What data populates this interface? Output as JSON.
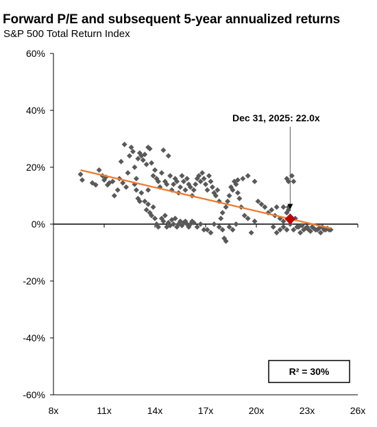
{
  "chart_data": {
    "type": "scatter",
    "title": "Forward P/E and subsequent 5-year annualized returns",
    "subtitle": "S&P 500 Total Return Index",
    "xlabel": "",
    "ylabel": "",
    "xlim": [
      8,
      26
    ],
    "ylim": [
      -60,
      60
    ],
    "x_ticks": [
      8,
      11,
      14,
      17,
      20,
      23,
      26
    ],
    "x_tick_labels": [
      "8x",
      "11x",
      "14x",
      "17x",
      "20x",
      "23x",
      "26x"
    ],
    "y_ticks": [
      60,
      40,
      20,
      0,
      -20,
      -40,
      -60
    ],
    "y_tick_labels": [
      "60%",
      "40%",
      "20%",
      "0%",
      "-20%",
      "-40%",
      "-60%"
    ],
    "grid": false,
    "colors": {
      "points": "#595959",
      "trendline": "#ED7D31",
      "current": "#C00000"
    },
    "points": [
      [
        9.6,
        17.5
      ],
      [
        9.7,
        15.5
      ],
      [
        10.3,
        14.5
      ],
      [
        10.5,
        13.8
      ],
      [
        10.7,
        19
      ],
      [
        10.9,
        17
      ],
      [
        11.0,
        15.5
      ],
      [
        11.1,
        16.5
      ],
      [
        11.2,
        13.8
      ],
      [
        11.3,
        14.5
      ],
      [
        11.5,
        15
      ],
      [
        11.6,
        10
      ],
      [
        11.8,
        12
      ],
      [
        11.9,
        16
      ],
      [
        12.0,
        22
      ],
      [
        12.1,
        14.5
      ],
      [
        12.2,
        28
      ],
      [
        12.3,
        13
      ],
      [
        12.4,
        18
      ],
      [
        12.5,
        24
      ],
      [
        12.6,
        27
      ],
      [
        12.7,
        25.5
      ],
      [
        12.8,
        20
      ],
      [
        12.9,
        16
      ],
      [
        13.0,
        23
      ],
      [
        13.1,
        25
      ],
      [
        13.2,
        24
      ],
      [
        13.3,
        22.5
      ],
      [
        13.4,
        24.5
      ],
      [
        13.5,
        21
      ],
      [
        13.6,
        27
      ],
      [
        13.7,
        26.5
      ],
      [
        13.8,
        21.5
      ],
      [
        12.8,
        14
      ],
      [
        12.9,
        12
      ],
      [
        13.0,
        9
      ],
      [
        13.1,
        8
      ],
      [
        13.2,
        11
      ],
      [
        13.4,
        8
      ],
      [
        13.5,
        5
      ],
      [
        13.6,
        7
      ],
      [
        13.7,
        4
      ],
      [
        13.8,
        3
      ],
      [
        13.9,
        6
      ],
      [
        14.0,
        2
      ],
      [
        14.1,
        0
      ],
      [
        14.2,
        -1
      ],
      [
        13.6,
        12
      ],
      [
        13.9,
        17
      ],
      [
        14.0,
        19
      ],
      [
        14.1,
        16
      ],
      [
        14.2,
        15
      ],
      [
        14.3,
        13
      ],
      [
        14.4,
        18
      ],
      [
        14.5,
        26
      ],
      [
        14.6,
        15
      ],
      [
        14.7,
        14
      ],
      [
        14.8,
        24
      ],
      [
        14.9,
        17
      ],
      [
        15.0,
        12
      ],
      [
        15.1,
        14
      ],
      [
        15.2,
        16
      ],
      [
        15.3,
        15
      ],
      [
        15.4,
        11
      ],
      [
        15.5,
        13
      ],
      [
        15.6,
        17
      ],
      [
        15.7,
        15
      ],
      [
        15.8,
        12
      ],
      [
        15.9,
        16
      ],
      [
        16.0,
        14
      ],
      [
        16.1,
        13
      ],
      [
        16.2,
        10
      ],
      [
        16.3,
        12
      ],
      [
        16.4,
        14
      ],
      [
        16.5,
        16
      ],
      [
        16.6,
        17
      ],
      [
        16.7,
        15
      ],
      [
        16.8,
        18
      ],
      [
        16.9,
        16
      ],
      [
        17.0,
        14
      ],
      [
        17.1,
        12
      ],
      [
        17.2,
        17
      ],
      [
        17.3,
        15
      ],
      [
        17.4,
        13
      ],
      [
        17.5,
        11
      ],
      [
        17.6,
        10
      ],
      [
        17.7,
        12
      ],
      [
        17.8,
        8
      ],
      [
        14.4,
        2
      ],
      [
        14.5,
        1
      ],
      [
        14.6,
        3
      ],
      [
        14.7,
        -1
      ],
      [
        14.8,
        0.5
      ],
      [
        14.9,
        -0.5
      ],
      [
        15.0,
        1.5
      ],
      [
        15.1,
        0
      ],
      [
        15.2,
        2
      ],
      [
        15.3,
        -1
      ],
      [
        15.4,
        0
      ],
      [
        15.5,
        1
      ],
      [
        15.6,
        -0.5
      ],
      [
        15.7,
        0.5
      ],
      [
        15.8,
        1
      ],
      [
        15.9,
        0
      ],
      [
        16.0,
        -1
      ],
      [
        16.1,
        0
      ],
      [
        16.2,
        1
      ],
      [
        16.3,
        0.5
      ],
      [
        16.5,
        -1
      ],
      [
        16.7,
        0
      ],
      [
        16.9,
        -2
      ],
      [
        17.1,
        -2
      ],
      [
        17.3,
        -3
      ],
      [
        17.5,
        0
      ],
      [
        17.8,
        -1
      ],
      [
        18.0,
        -2
      ],
      [
        18.1,
        -5
      ],
      [
        18.2,
        -6
      ],
      [
        18.4,
        -1
      ],
      [
        18.6,
        -2
      ],
      [
        18.8,
        0
      ],
      [
        17.9,
        2
      ],
      [
        18.0,
        4
      ],
      [
        18.2,
        6
      ],
      [
        18.3,
        8
      ],
      [
        18.4,
        10
      ],
      [
        18.5,
        13
      ],
      [
        18.6,
        12
      ],
      [
        18.7,
        15
      ],
      [
        18.8,
        14
      ],
      [
        18.9,
        11
      ],
      [
        19.0,
        9
      ],
      [
        19.1,
        6
      ],
      [
        19.3,
        3
      ],
      [
        19.5,
        2
      ],
      [
        19.7,
        -3
      ],
      [
        19.9,
        1
      ],
      [
        19.9,
        15
      ],
      [
        19.5,
        17
      ],
      [
        19.2,
        16
      ],
      [
        18.9,
        15.5
      ],
      [
        20.1,
        8
      ],
      [
        20.3,
        7
      ],
      [
        20.5,
        6
      ],
      [
        20.7,
        4
      ],
      [
        20.9,
        5
      ],
      [
        21.1,
        3
      ],
      [
        21.2,
        6
      ],
      [
        21.4,
        2
      ],
      [
        21.6,
        1
      ],
      [
        21.8,
        4
      ],
      [
        21.9,
        6
      ],
      [
        21.9,
        5
      ],
      [
        21.6,
        6
      ],
      [
        21.8,
        16
      ],
      [
        21.9,
        15
      ],
      [
        22.1,
        17
      ],
      [
        22.2,
        15
      ],
      [
        22.0,
        0
      ],
      [
        22.3,
        2
      ],
      [
        22.5,
        -1
      ],
      [
        22.7,
        -0.5
      ],
      [
        22.9,
        -1.5
      ],
      [
        23.1,
        -2
      ],
      [
        23.3,
        -1
      ],
      [
        23.5,
        -2
      ],
      [
        23.7,
        -1.5
      ],
      [
        23.9,
        -1
      ],
      [
        24.1,
        -2
      ],
      [
        24.3,
        -2
      ],
      [
        21.0,
        -1
      ],
      [
        21.2,
        -3
      ],
      [
        21.4,
        -2
      ],
      [
        21.6,
        -1
      ],
      [
        21.8,
        -2
      ],
      [
        22.2,
        -2
      ],
      [
        22.4,
        -1
      ],
      [
        22.6,
        -3
      ],
      [
        22.8,
        -2
      ],
      [
        23.0,
        -1
      ],
      [
        23.2,
        -2.5
      ],
      [
        23.4,
        -1.5
      ],
      [
        23.6,
        -2
      ],
      [
        23.8,
        -3
      ],
      [
        24.0,
        -2
      ],
      [
        24.2,
        -1.5
      ],
      [
        24.4,
        -2
      ]
    ],
    "trendline": {
      "x": [
        9.6,
        24.4
      ],
      "y": [
        19,
        -1.5
      ]
    },
    "current": {
      "x": 22.0,
      "y": 1.8
    },
    "annotation": {
      "label": "Dec 31, 2025:",
      "value": "22.0x"
    },
    "r_squared": {
      "label": "R²",
      "value": "= 30%"
    }
  }
}
